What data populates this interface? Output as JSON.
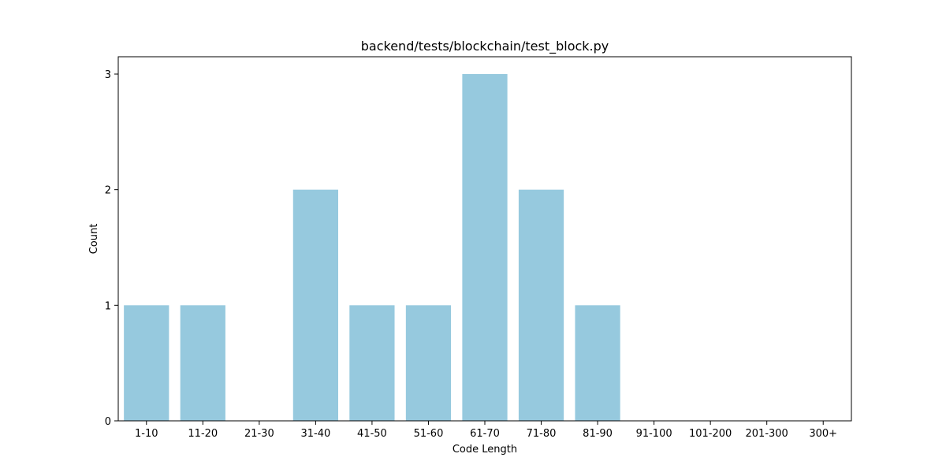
{
  "chart_data": {
    "type": "bar",
    "title": "backend/tests/blockchain/test_block.py",
    "xlabel": "Code Length",
    "ylabel": "Count",
    "categories": [
      "1-10",
      "11-20",
      "21-30",
      "31-40",
      "41-50",
      "51-60",
      "61-70",
      "71-80",
      "81-90",
      "91-100",
      "101-200",
      "201-300",
      "300+"
    ],
    "values": [
      1,
      1,
      0,
      2,
      1,
      1,
      3,
      2,
      1,
      0,
      0,
      0,
      0
    ],
    "ylim": [
      0,
      3.15
    ],
    "yticks": [
      0,
      1,
      2,
      3
    ],
    "bar_color": "#96c9de",
    "grid": false,
    "legend": "none"
  }
}
